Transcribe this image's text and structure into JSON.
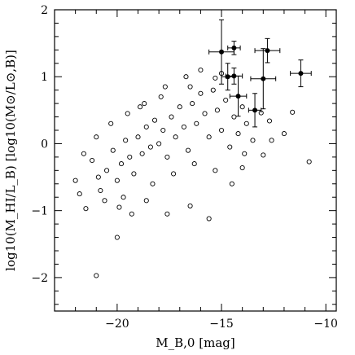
{
  "chart_data": {
    "type": "scatter",
    "title": "",
    "xlabel": "M_B,0 [mag]",
    "ylabel": "log10(M_HI/L_B)  [log10(M⊙/L⊙,B)]",
    "xlim": [
      -23,
      -9.5
    ],
    "ylim": [
      -2.5,
      2
    ],
    "x_ticks": [
      -20,
      -15,
      -10
    ],
    "x_tick_labels": [
      "−20",
      "−15",
      "−10"
    ],
    "y_ticks": [
      -2,
      -1,
      0,
      1,
      2
    ],
    "y_tick_labels": [
      "−2",
      "−1",
      "0",
      "1",
      "2"
    ],
    "grid": false,
    "legend": "none",
    "series": [
      {
        "marker": "open-circle",
        "color": "#000000",
        "points": [
          [
            -21.0,
            -1.97
          ],
          [
            -20.0,
            -1.4
          ],
          [
            -15.6,
            -1.12
          ],
          [
            -10.8,
            -0.27
          ],
          [
            -13.0,
            -0.17
          ],
          [
            -12.0,
            0.15
          ],
          [
            -11.6,
            0.47
          ],
          [
            -12.7,
            0.34
          ],
          [
            -13.1,
            0.46
          ],
          [
            -14.0,
            -0.36
          ],
          [
            -16.5,
            -0.93
          ],
          [
            -17.6,
            -1.05
          ],
          [
            -18.6,
            -0.85
          ],
          [
            -19.3,
            -1.05
          ],
          [
            -21.5,
            -0.97
          ],
          [
            -22.0,
            -0.55
          ],
          [
            -21.2,
            -0.25
          ],
          [
            -20.8,
            -0.7
          ],
          [
            -20.5,
            -0.4
          ],
          [
            -20.2,
            -0.1
          ],
          [
            -20.0,
            -0.55
          ],
          [
            -19.8,
            -0.3
          ],
          [
            -19.6,
            0.05
          ],
          [
            -19.4,
            -0.2
          ],
          [
            -19.2,
            -0.45
          ],
          [
            -19.0,
            0.1
          ],
          [
            -18.8,
            -0.15
          ],
          [
            -18.6,
            0.25
          ],
          [
            -18.4,
            -0.05
          ],
          [
            -18.2,
            0.35
          ],
          [
            -18.0,
            0.0
          ],
          [
            -17.8,
            0.2
          ],
          [
            -17.6,
            -0.2
          ],
          [
            -17.4,
            0.4
          ],
          [
            -17.2,
            0.1
          ],
          [
            -17.0,
            0.55
          ],
          [
            -16.8,
            0.25
          ],
          [
            -16.6,
            -0.1
          ],
          [
            -16.4,
            0.6
          ],
          [
            -16.2,
            0.3
          ],
          [
            -16.0,
            0.75
          ],
          [
            -15.8,
            0.45
          ],
          [
            -15.6,
            0.1
          ],
          [
            -15.4,
            0.8
          ],
          [
            -15.2,
            0.5
          ],
          [
            -15.0,
            0.2
          ],
          [
            -14.8,
            0.65
          ],
          [
            -14.6,
            -0.05
          ],
          [
            -14.4,
            0.4
          ],
          [
            -14.2,
            0.15
          ],
          [
            -14.0,
            0.55
          ],
          [
            -13.8,
            0.3
          ],
          [
            -13.5,
            0.05
          ],
          [
            -16.0,
            1.1
          ],
          [
            -16.7,
            1.0
          ],
          [
            -15.3,
            0.98
          ],
          [
            -17.9,
            0.7
          ],
          [
            -18.9,
            0.55
          ],
          [
            -19.5,
            0.45
          ],
          [
            -20.3,
            0.3
          ],
          [
            -21.0,
            0.1
          ],
          [
            -21.6,
            -0.15
          ],
          [
            -20.6,
            -0.85
          ],
          [
            -19.7,
            -0.8
          ],
          [
            -18.3,
            -0.6
          ],
          [
            -17.3,
            -0.45
          ],
          [
            -16.3,
            -0.3
          ],
          [
            -15.3,
            -0.4
          ],
          [
            -14.5,
            -0.6
          ],
          [
            -13.9,
            -0.15
          ],
          [
            -12.6,
            0.05
          ],
          [
            -15.0,
            1.05
          ],
          [
            -16.5,
            0.85
          ],
          [
            -17.7,
            0.85
          ],
          [
            -18.7,
            0.6
          ],
          [
            -20.9,
            -0.5
          ],
          [
            -21.8,
            -0.75
          ],
          [
            -19.9,
            -0.95
          ]
        ]
      },
      {
        "marker": "filled-circle-errorbar",
        "color": "#000000",
        "points": [
          {
            "x": -15.0,
            "y": 1.37,
            "xerr": 0.6,
            "yerr": 0.48
          },
          {
            "x": -14.4,
            "y": 1.43,
            "xerr": 0.3,
            "yerr": 0.1
          },
          {
            "x": -12.8,
            "y": 1.39,
            "xerr": 0.6,
            "yerr": 0.18
          },
          {
            "x": -14.7,
            "y": 1.0,
            "xerr": 0.3,
            "yerr": 0.2
          },
          {
            "x": -14.4,
            "y": 1.01,
            "xerr": 0.4,
            "yerr": 0.12
          },
          {
            "x": -14.2,
            "y": 0.71,
            "xerr": 0.4,
            "yerr": 0.3
          },
          {
            "x": -13.0,
            "y": 0.97,
            "xerr": 0.6,
            "yerr": 0.45
          },
          {
            "x": -13.4,
            "y": 0.5,
            "xerr": 0.3,
            "yerr": 0.25
          },
          {
            "x": -11.2,
            "y": 1.05,
            "xerr": 0.5,
            "yerr": 0.2
          }
        ]
      }
    ]
  }
}
